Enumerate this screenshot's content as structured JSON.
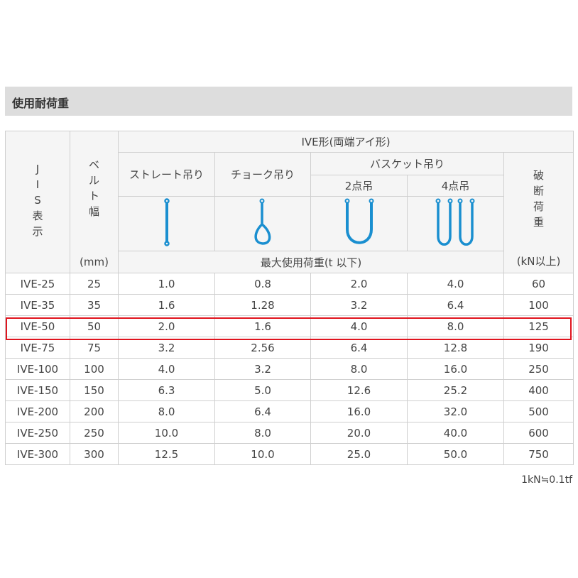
{
  "title": "使用耐荷重",
  "header": {
    "jis": [
      "J",
      "I",
      "S",
      "表",
      "示"
    ],
    "belt": [
      "ベ",
      "ル",
      "ト",
      "幅"
    ],
    "belt_unit": "(mm)",
    "type": "IVE形(両端アイ形)",
    "straight": "ストレート吊り",
    "choke": "チョーク吊り",
    "basket": "バスケット吊り",
    "two_point": "2点吊",
    "four_point": "4点吊",
    "break": [
      "破",
      "断",
      "荷",
      "重"
    ],
    "break_unit": "(kN以上)",
    "max_load": "最大使用荷重(t 以下)"
  },
  "icons": [
    "straight-sling-icon",
    "choke-sling-icon",
    "basket-2point-icon",
    "basket-4point-icon"
  ],
  "accent_color": "#1a8fd0",
  "highlight_color": "#e0141e",
  "rows": [
    [
      "IVE-25",
      "25",
      "1.0",
      "0.8",
      "2.0",
      "4.0",
      "60"
    ],
    [
      "IVE-35",
      "35",
      "1.6",
      "1.28",
      "3.2",
      "6.4",
      "100"
    ],
    [
      "IVE-50",
      "50",
      "2.0",
      "1.6",
      "4.0",
      "8.0",
      "125"
    ],
    [
      "IVE-75",
      "75",
      "3.2",
      "2.56",
      "6.4",
      "12.8",
      "190"
    ],
    [
      "IVE-100",
      "100",
      "4.0",
      "3.2",
      "8.0",
      "16.0",
      "250"
    ],
    [
      "IVE-150",
      "150",
      "6.3",
      "5.0",
      "12.6",
      "25.2",
      "400"
    ],
    [
      "IVE-200",
      "200",
      "8.0",
      "6.4",
      "16.0",
      "32.0",
      "500"
    ],
    [
      "IVE-250",
      "250",
      "10.0",
      "8.0",
      "20.0",
      "40.0",
      "600"
    ],
    [
      "IVE-300",
      "300",
      "12.5",
      "10.0",
      "25.0",
      "50.0",
      "750"
    ]
  ],
  "highlighted_row": "IVE-50",
  "note": "1kN≒0.1tf"
}
